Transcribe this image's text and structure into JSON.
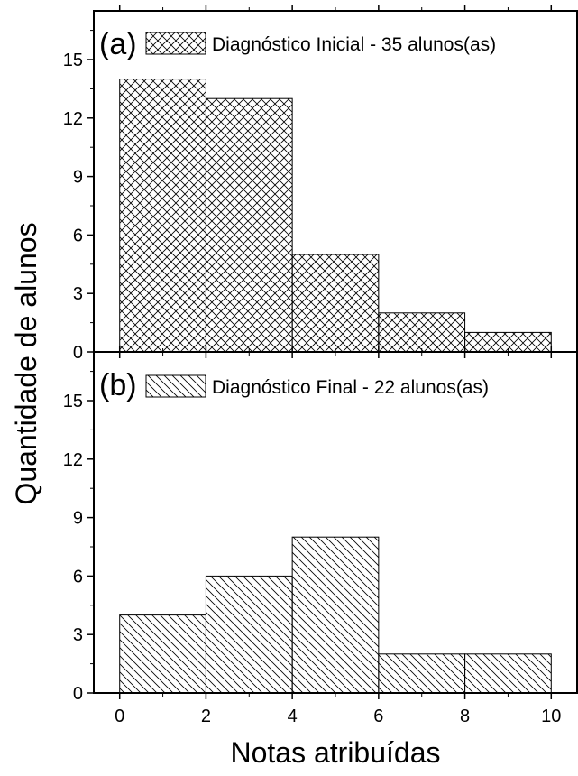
{
  "chart_data": {
    "type": "bar",
    "xlabel": "Notas atribuídas",
    "ylabel": "Quantidade de alunos",
    "x_ticks": [
      "0",
      "2",
      "4",
      "6",
      "8",
      "10"
    ],
    "y_ticks": [
      "0",
      "3",
      "6",
      "9",
      "12",
      "15"
    ],
    "bin_edges": [
      0,
      2,
      4,
      6,
      8,
      10
    ],
    "xlim": [
      -0.6,
      10.6
    ],
    "ylim": [
      0,
      17.5
    ],
    "panels": [
      {
        "panel_label": "(a)",
        "legend": "Diagnóstico Inicial - 35 alunos(as)",
        "hatch": "crosshatch",
        "values": [
          14,
          13,
          5,
          2,
          1
        ]
      },
      {
        "panel_label": "(b)",
        "legend": "Diagnóstico Final - 22 alunos(as)",
        "hatch": "diagonal",
        "values": [
          4,
          6,
          8,
          2,
          2
        ]
      }
    ]
  }
}
